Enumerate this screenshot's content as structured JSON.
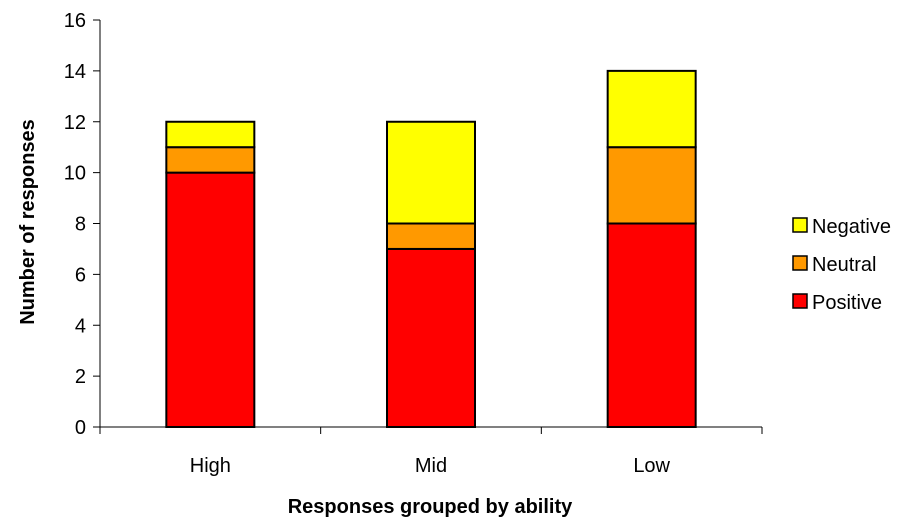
{
  "chart_data": {
    "type": "bar",
    "stacked": true,
    "title": "",
    "xlabel": "Responses grouped by ability",
    "ylabel": "Number of responses",
    "categories": [
      "High",
      "Mid",
      "Low"
    ],
    "ylim": [
      0,
      16
    ],
    "yticks": [
      0,
      2,
      4,
      6,
      8,
      10,
      12,
      14,
      16
    ],
    "grid": false,
    "legend_position": "right",
    "series": [
      {
        "name": "Positive",
        "values": [
          10,
          7,
          8
        ],
        "color": "#ff0000"
      },
      {
        "name": "Neutral",
        "values": [
          1,
          1,
          3
        ],
        "color": "#ff9900"
      },
      {
        "name": "Negative",
        "values": [
          1,
          4,
          3
        ],
        "color": "#ffff00"
      }
    ],
    "legend_order": [
      "Negative",
      "Neutral",
      "Positive"
    ]
  }
}
